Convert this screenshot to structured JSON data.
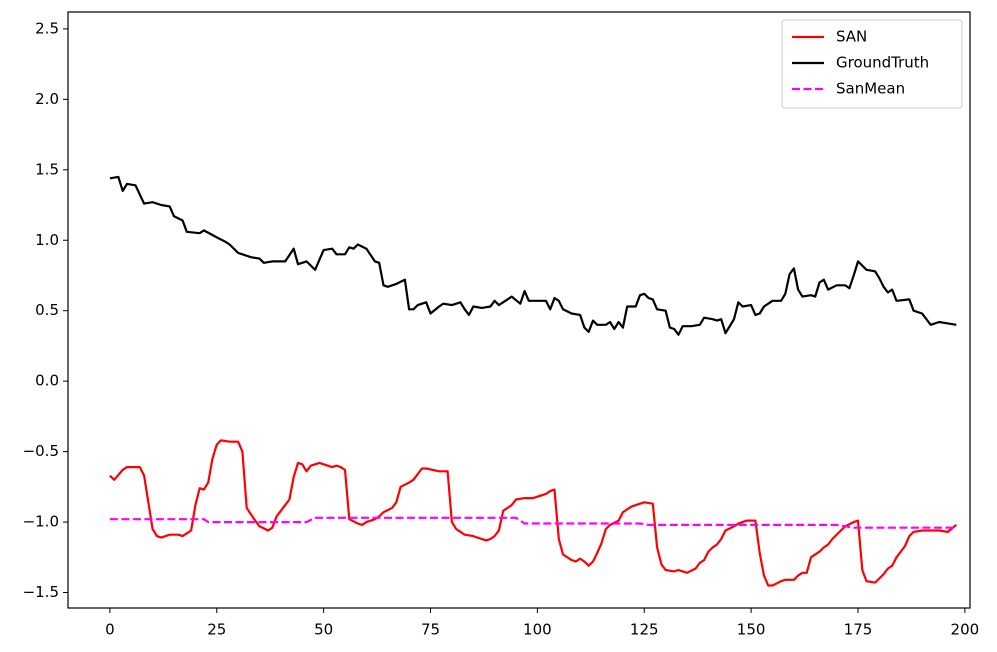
{
  "chart_data": {
    "type": "line",
    "xlim": [
      -9.8,
      201.2
    ],
    "ylim": [
      -1.61,
      2.62
    ],
    "xticks": [
      0,
      25,
      50,
      75,
      100,
      125,
      150,
      175,
      200
    ],
    "yticks": [
      {
        "value": -1.5,
        "label": "−1.5"
      },
      {
        "value": -1.0,
        "label": "−1.0"
      },
      {
        "value": -0.5,
        "label": "−0.5"
      },
      {
        "value": 0.0,
        "label": "0.0"
      },
      {
        "value": 0.5,
        "label": "0.5"
      },
      {
        "value": 1.0,
        "label": "1.0"
      },
      {
        "value": 1.5,
        "label": "1.5"
      },
      {
        "value": 2.0,
        "label": "2.0"
      },
      {
        "value": 2.5,
        "label": "2.5"
      }
    ],
    "legend": "upper right",
    "series": [
      {
        "name": "SAN",
        "color": "#ff0000",
        "dashed": false,
        "x": [
          0,
          1,
          3,
          4,
          7,
          8,
          10,
          11,
          12,
          14,
          16,
          17,
          19,
          20,
          21,
          22,
          23,
          24,
          25,
          26,
          28,
          30,
          31,
          32,
          34,
          35,
          37,
          38,
          39,
          41,
          42,
          43,
          44,
          45,
          46,
          47,
          49,
          51,
          52,
          53,
          54,
          55,
          56,
          58,
          59,
          60,
          62,
          63,
          64,
          66,
          67,
          68,
          70,
          71,
          72,
          73,
          74,
          77,
          79,
          80,
          81,
          83,
          85,
          86,
          88,
          89,
          90,
          91,
          92,
          94,
          95,
          97,
          99,
          100,
          102,
          103,
          104,
          105,
          106,
          108,
          109,
          110,
          111,
          112,
          113,
          114,
          115,
          116,
          117,
          119,
          120,
          122,
          124,
          125,
          127,
          128,
          129,
          130,
          132,
          133,
          134,
          135,
          137,
          138,
          139,
          140,
          141,
          142,
          143,
          144,
          146,
          147,
          149,
          151,
          152,
          153,
          154,
          155,
          157,
          158,
          160,
          161,
          162,
          163,
          164,
          166,
          167,
          168,
          169,
          171,
          172,
          174,
          175,
          176,
          177,
          179,
          180,
          181,
          182,
          183,
          184,
          186,
          187,
          188,
          190,
          194,
          196,
          198
        ],
        "values": [
          -0.67,
          -0.7,
          -0.63,
          -0.61,
          -0.61,
          -0.67,
          -1.05,
          -1.1,
          -1.11,
          -1.09,
          -1.09,
          -1.1,
          -1.06,
          -0.88,
          -0.76,
          -0.77,
          -0.72,
          -0.55,
          -0.45,
          -0.42,
          -0.43,
          -0.43,
          -0.5,
          -0.9,
          -0.99,
          -1.03,
          -1.06,
          -1.04,
          -0.96,
          -0.88,
          -0.84,
          -0.68,
          -0.58,
          -0.59,
          -0.64,
          -0.6,
          -0.58,
          -0.6,
          -0.61,
          -0.6,
          -0.61,
          -0.63,
          -0.98,
          -1.01,
          -1.02,
          -1.0,
          -0.98,
          -0.96,
          -0.93,
          -0.9,
          -0.86,
          -0.75,
          -0.72,
          -0.7,
          -0.66,
          -0.62,
          -0.62,
          -0.64,
          -0.64,
          -1.0,
          -1.05,
          -1.09,
          -1.1,
          -1.11,
          -1.13,
          -1.12,
          -1.1,
          -1.06,
          -0.92,
          -0.88,
          -0.84,
          -0.83,
          -0.83,
          -0.82,
          -0.8,
          -0.78,
          -0.77,
          -1.12,
          -1.23,
          -1.27,
          -1.28,
          -1.26,
          -1.28,
          -1.31,
          -1.28,
          -1.22,
          -1.15,
          -1.05,
          -1.02,
          -0.99,
          -0.93,
          -0.89,
          -0.87,
          -0.86,
          -0.87,
          -1.18,
          -1.3,
          -1.34,
          -1.35,
          -1.34,
          -1.35,
          -1.36,
          -1.33,
          -1.29,
          -1.27,
          -1.21,
          -1.18,
          -1.16,
          -1.12,
          -1.06,
          -1.03,
          -1.01,
          -0.99,
          -0.99,
          -1.22,
          -1.38,
          -1.45,
          -1.45,
          -1.42,
          -1.41,
          -1.41,
          -1.38,
          -1.36,
          -1.36,
          -1.25,
          -1.21,
          -1.18,
          -1.16,
          -1.12,
          -1.06,
          -1.03,
          -1.0,
          -0.99,
          -1.34,
          -1.42,
          -1.43,
          -1.4,
          -1.37,
          -1.33,
          -1.31,
          -1.25,
          -1.17,
          -1.1,
          -1.07,
          -1.06,
          -1.06,
          -1.07,
          -1.02
        ]
      },
      {
        "name": "GroundTruth",
        "color": "#000000",
        "dashed": false,
        "x": [
          0,
          2,
          3,
          4,
          6,
          8,
          10,
          12,
          14,
          15,
          17,
          18,
          21,
          22,
          25,
          27,
          28,
          30,
          31,
          33,
          35,
          36,
          38,
          41,
          43,
          44,
          46,
          48,
          50,
          52,
          53,
          55,
          56,
          57,
          58,
          60,
          62,
          63,
          64,
          65,
          67,
          69,
          70,
          71,
          72,
          74,
          75,
          77,
          78,
          80,
          82,
          83,
          84,
          85,
          87,
          89,
          90,
          91,
          93,
          94,
          96,
          97,
          98,
          100,
          102,
          103,
          104,
          105,
          106,
          108,
          110,
          111,
          112,
          113,
          114,
          116,
          117,
          118,
          119,
          120,
          121,
          123,
          124,
          125,
          126,
          127,
          128,
          130,
          131,
          132,
          133,
          134,
          136,
          138,
          139,
          141,
          142,
          143,
          144,
          146,
          147,
          148,
          150,
          151,
          152,
          153,
          155,
          157,
          158,
          159,
          160,
          161,
          162,
          164,
          165,
          166,
          167,
          168,
          170,
          172,
          173,
          174,
          175,
          177,
          179,
          180,
          181,
          182,
          183,
          184,
          187,
          188,
          190,
          192,
          194,
          196,
          198
        ],
        "values": [
          1.44,
          1.45,
          1.35,
          1.4,
          1.39,
          1.26,
          1.27,
          1.25,
          1.24,
          1.17,
          1.14,
          1.06,
          1.05,
          1.07,
          1.02,
          0.99,
          0.97,
          0.91,
          0.9,
          0.88,
          0.87,
          0.84,
          0.85,
          0.85,
          0.94,
          0.83,
          0.85,
          0.79,
          0.93,
          0.94,
          0.9,
          0.9,
          0.95,
          0.94,
          0.97,
          0.94,
          0.85,
          0.84,
          0.68,
          0.67,
          0.69,
          0.72,
          0.51,
          0.51,
          0.54,
          0.56,
          0.48,
          0.53,
          0.55,
          0.54,
          0.56,
          0.51,
          0.47,
          0.53,
          0.52,
          0.53,
          0.57,
          0.54,
          0.58,
          0.6,
          0.55,
          0.64,
          0.57,
          0.57,
          0.57,
          0.51,
          0.59,
          0.57,
          0.51,
          0.48,
          0.47,
          0.38,
          0.35,
          0.43,
          0.4,
          0.4,
          0.42,
          0.37,
          0.42,
          0.38,
          0.53,
          0.53,
          0.61,
          0.62,
          0.59,
          0.58,
          0.51,
          0.5,
          0.38,
          0.37,
          0.33,
          0.39,
          0.39,
          0.4,
          0.45,
          0.44,
          0.43,
          0.44,
          0.34,
          0.44,
          0.56,
          0.53,
          0.54,
          0.47,
          0.48,
          0.53,
          0.57,
          0.57,
          0.62,
          0.76,
          0.8,
          0.65,
          0.6,
          0.61,
          0.6,
          0.7,
          0.72,
          0.65,
          0.68,
          0.68,
          0.66,
          0.75,
          0.85,
          0.79,
          0.78,
          0.73,
          0.67,
          0.63,
          0.65,
          0.57,
          0.58,
          0.5,
          0.48,
          0.4,
          0.42,
          0.41,
          0.4
        ]
      },
      {
        "name": "SanMean",
        "color": "#ff00ff",
        "dashed": true,
        "x": [
          0,
          22,
          23,
          46,
          48,
          95,
          97,
          124,
          126,
          170,
          174,
          198
        ],
        "values": [
          -0.98,
          -0.98,
          -1.0,
          -1.0,
          -0.97,
          -0.97,
          -1.01,
          -1.01,
          -1.02,
          -1.02,
          -1.04,
          -1.04
        ]
      }
    ]
  }
}
